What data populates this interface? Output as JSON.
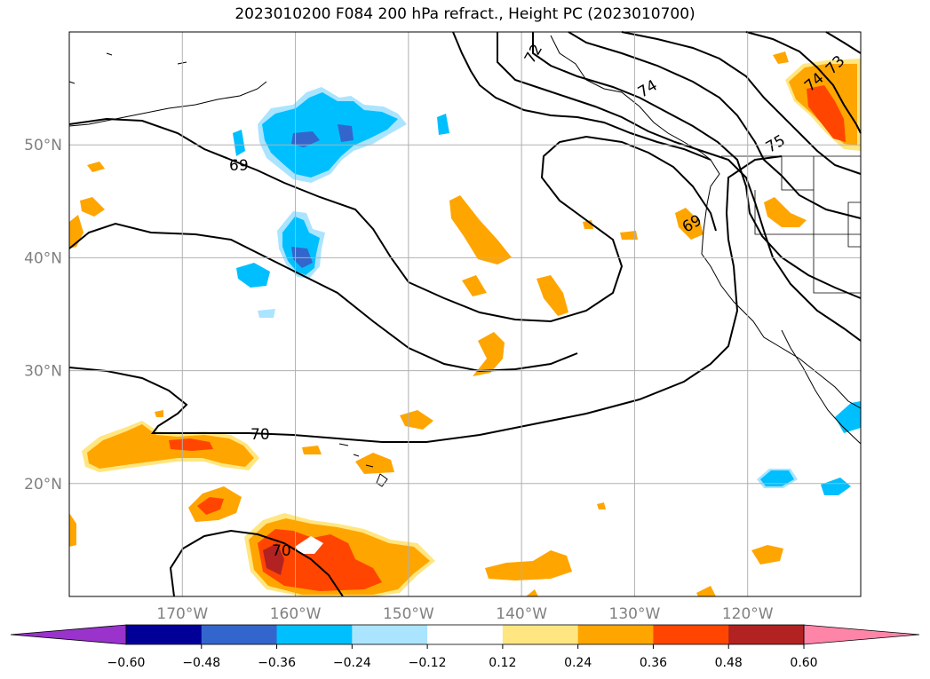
{
  "title": "2023010200 F084 200 hPa refract., Height PC (2023010700)",
  "map": {
    "lon_range": [
      -180,
      -110
    ],
    "lat_range": [
      10,
      60
    ],
    "lat_ticks": [
      {
        "value": 20,
        "label": "20°N"
      },
      {
        "value": 30,
        "label": "30°N"
      },
      {
        "value": 40,
        "label": "40°N"
      },
      {
        "value": 50,
        "label": "50°N"
      }
    ],
    "lon_ticks": [
      {
        "value": -170,
        "label": "170°W"
      },
      {
        "value": -160,
        "label": "160°W"
      },
      {
        "value": -150,
        "label": "150°W"
      },
      {
        "value": -140,
        "label": "140°W"
      },
      {
        "value": -130,
        "label": "130°W"
      },
      {
        "value": -120,
        "label": "120°W"
      }
    ],
    "grid": true,
    "contour_labels": [
      "69",
      "70",
      "70",
      "72",
      "74",
      "73",
      "74",
      "75",
      "69"
    ]
  },
  "colorbar": {
    "colors": [
      "#9933cc",
      "#000099",
      "#3366cc",
      "#00bfff",
      "#aae4ff",
      "#ffffff",
      "#ffe680",
      "#ffa500",
      "#ff4500",
      "#b22222",
      "#ff85a8"
    ],
    "tick_labels": [
      "−0.60",
      "−0.48",
      "−0.36",
      "−0.24",
      "−0.12",
      "0.12",
      "0.24",
      "0.36",
      "0.48",
      "0.60"
    ]
  }
}
